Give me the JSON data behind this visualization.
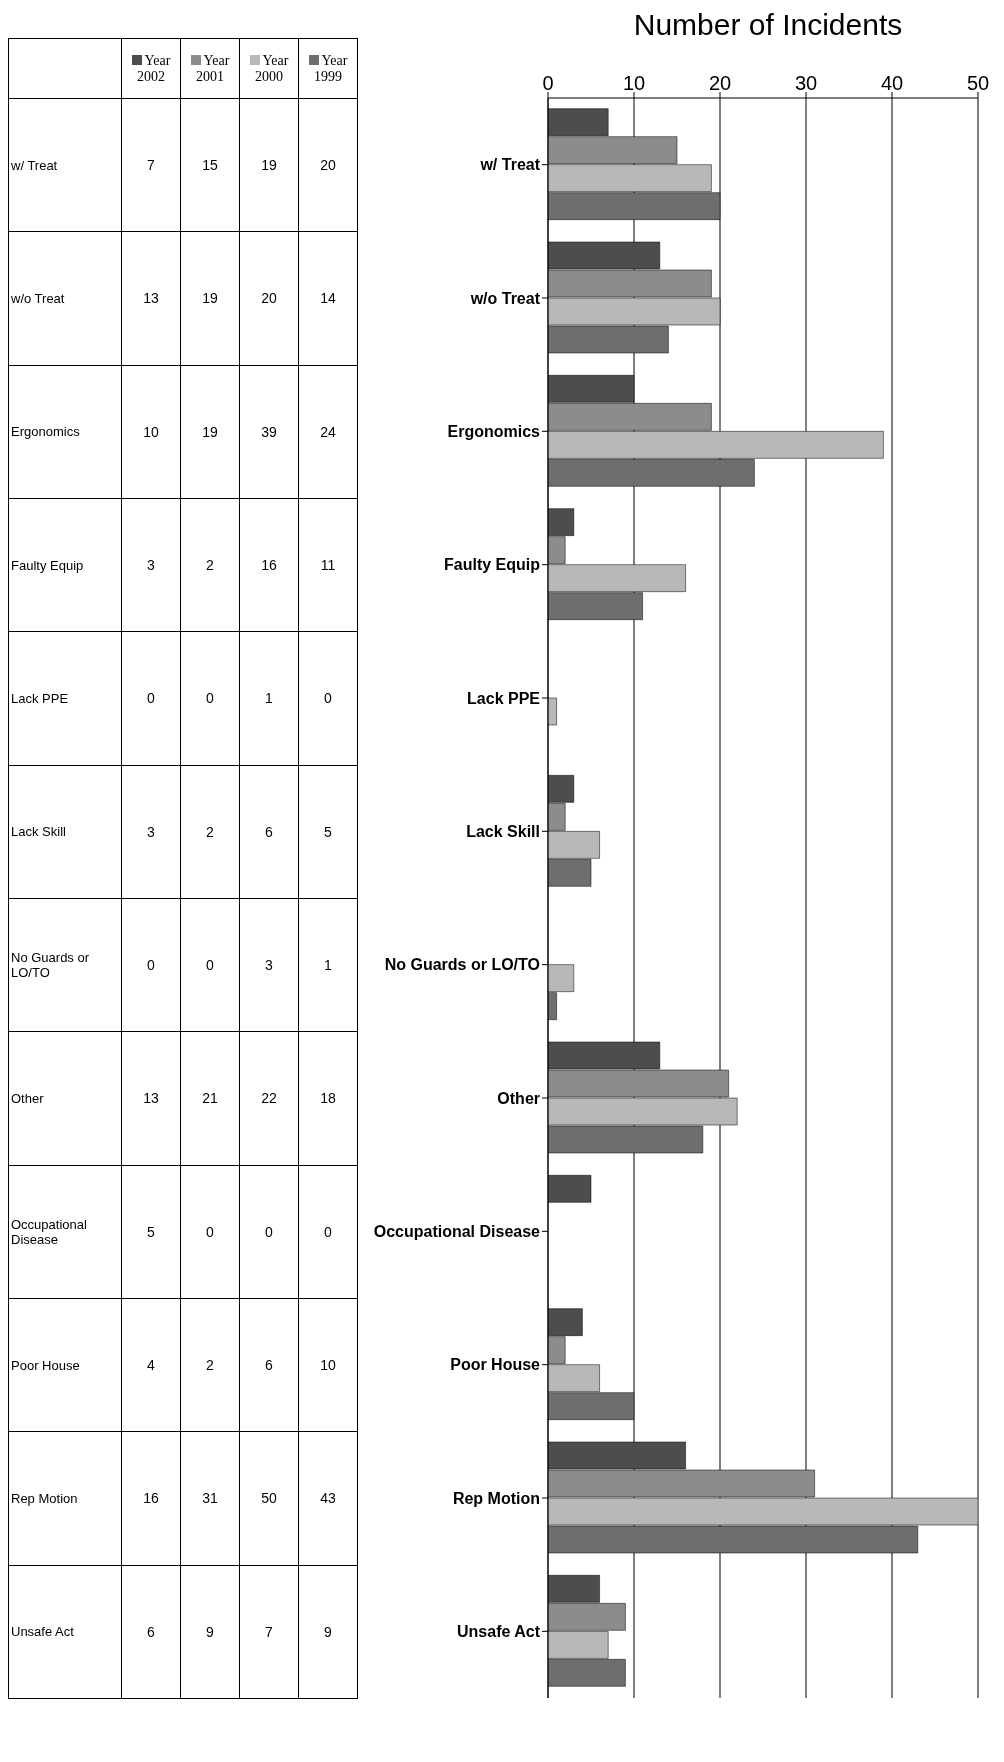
{
  "chart_data": {
    "type": "bar",
    "orientation": "horizontal",
    "title": "Number of Incidents",
    "categories": [
      "w/ Treat",
      "w/o Treat",
      "Ergonomics",
      "Faulty Equip",
      "Lack  PPE",
      "Lack Skill",
      "No Guards or  LO/TO",
      "Other",
      "Occupational Disease",
      "Poor House",
      "Rep Motion",
      "Unsafe Act"
    ],
    "series": [
      {
        "name": "Year 2002",
        "color": "#4d4d4d",
        "values": [
          7,
          13,
          10,
          3,
          0,
          3,
          0,
          13,
          5,
          4,
          16,
          6
        ]
      },
      {
        "name": "Year 2001",
        "color": "#8c8c8c",
        "values": [
          15,
          19,
          19,
          2,
          0,
          2,
          0,
          21,
          0,
          2,
          31,
          9
        ]
      },
      {
        "name": "Year 2000",
        "color": "#b8b8b8",
        "values": [
          19,
          20,
          39,
          16,
          1,
          6,
          3,
          22,
          0,
          6,
          50,
          7
        ]
      },
      {
        "name": "Year 1999",
        "color": "#6e6e6e",
        "values": [
          20,
          14,
          24,
          11,
          0,
          5,
          1,
          18,
          0,
          10,
          43,
          9
        ]
      }
    ],
    "xlim": [
      0,
      50
    ],
    "xticks": [
      0,
      10,
      20,
      30,
      40,
      50
    ],
    "grid": "x",
    "legend": "left",
    "data_labels": true
  }
}
